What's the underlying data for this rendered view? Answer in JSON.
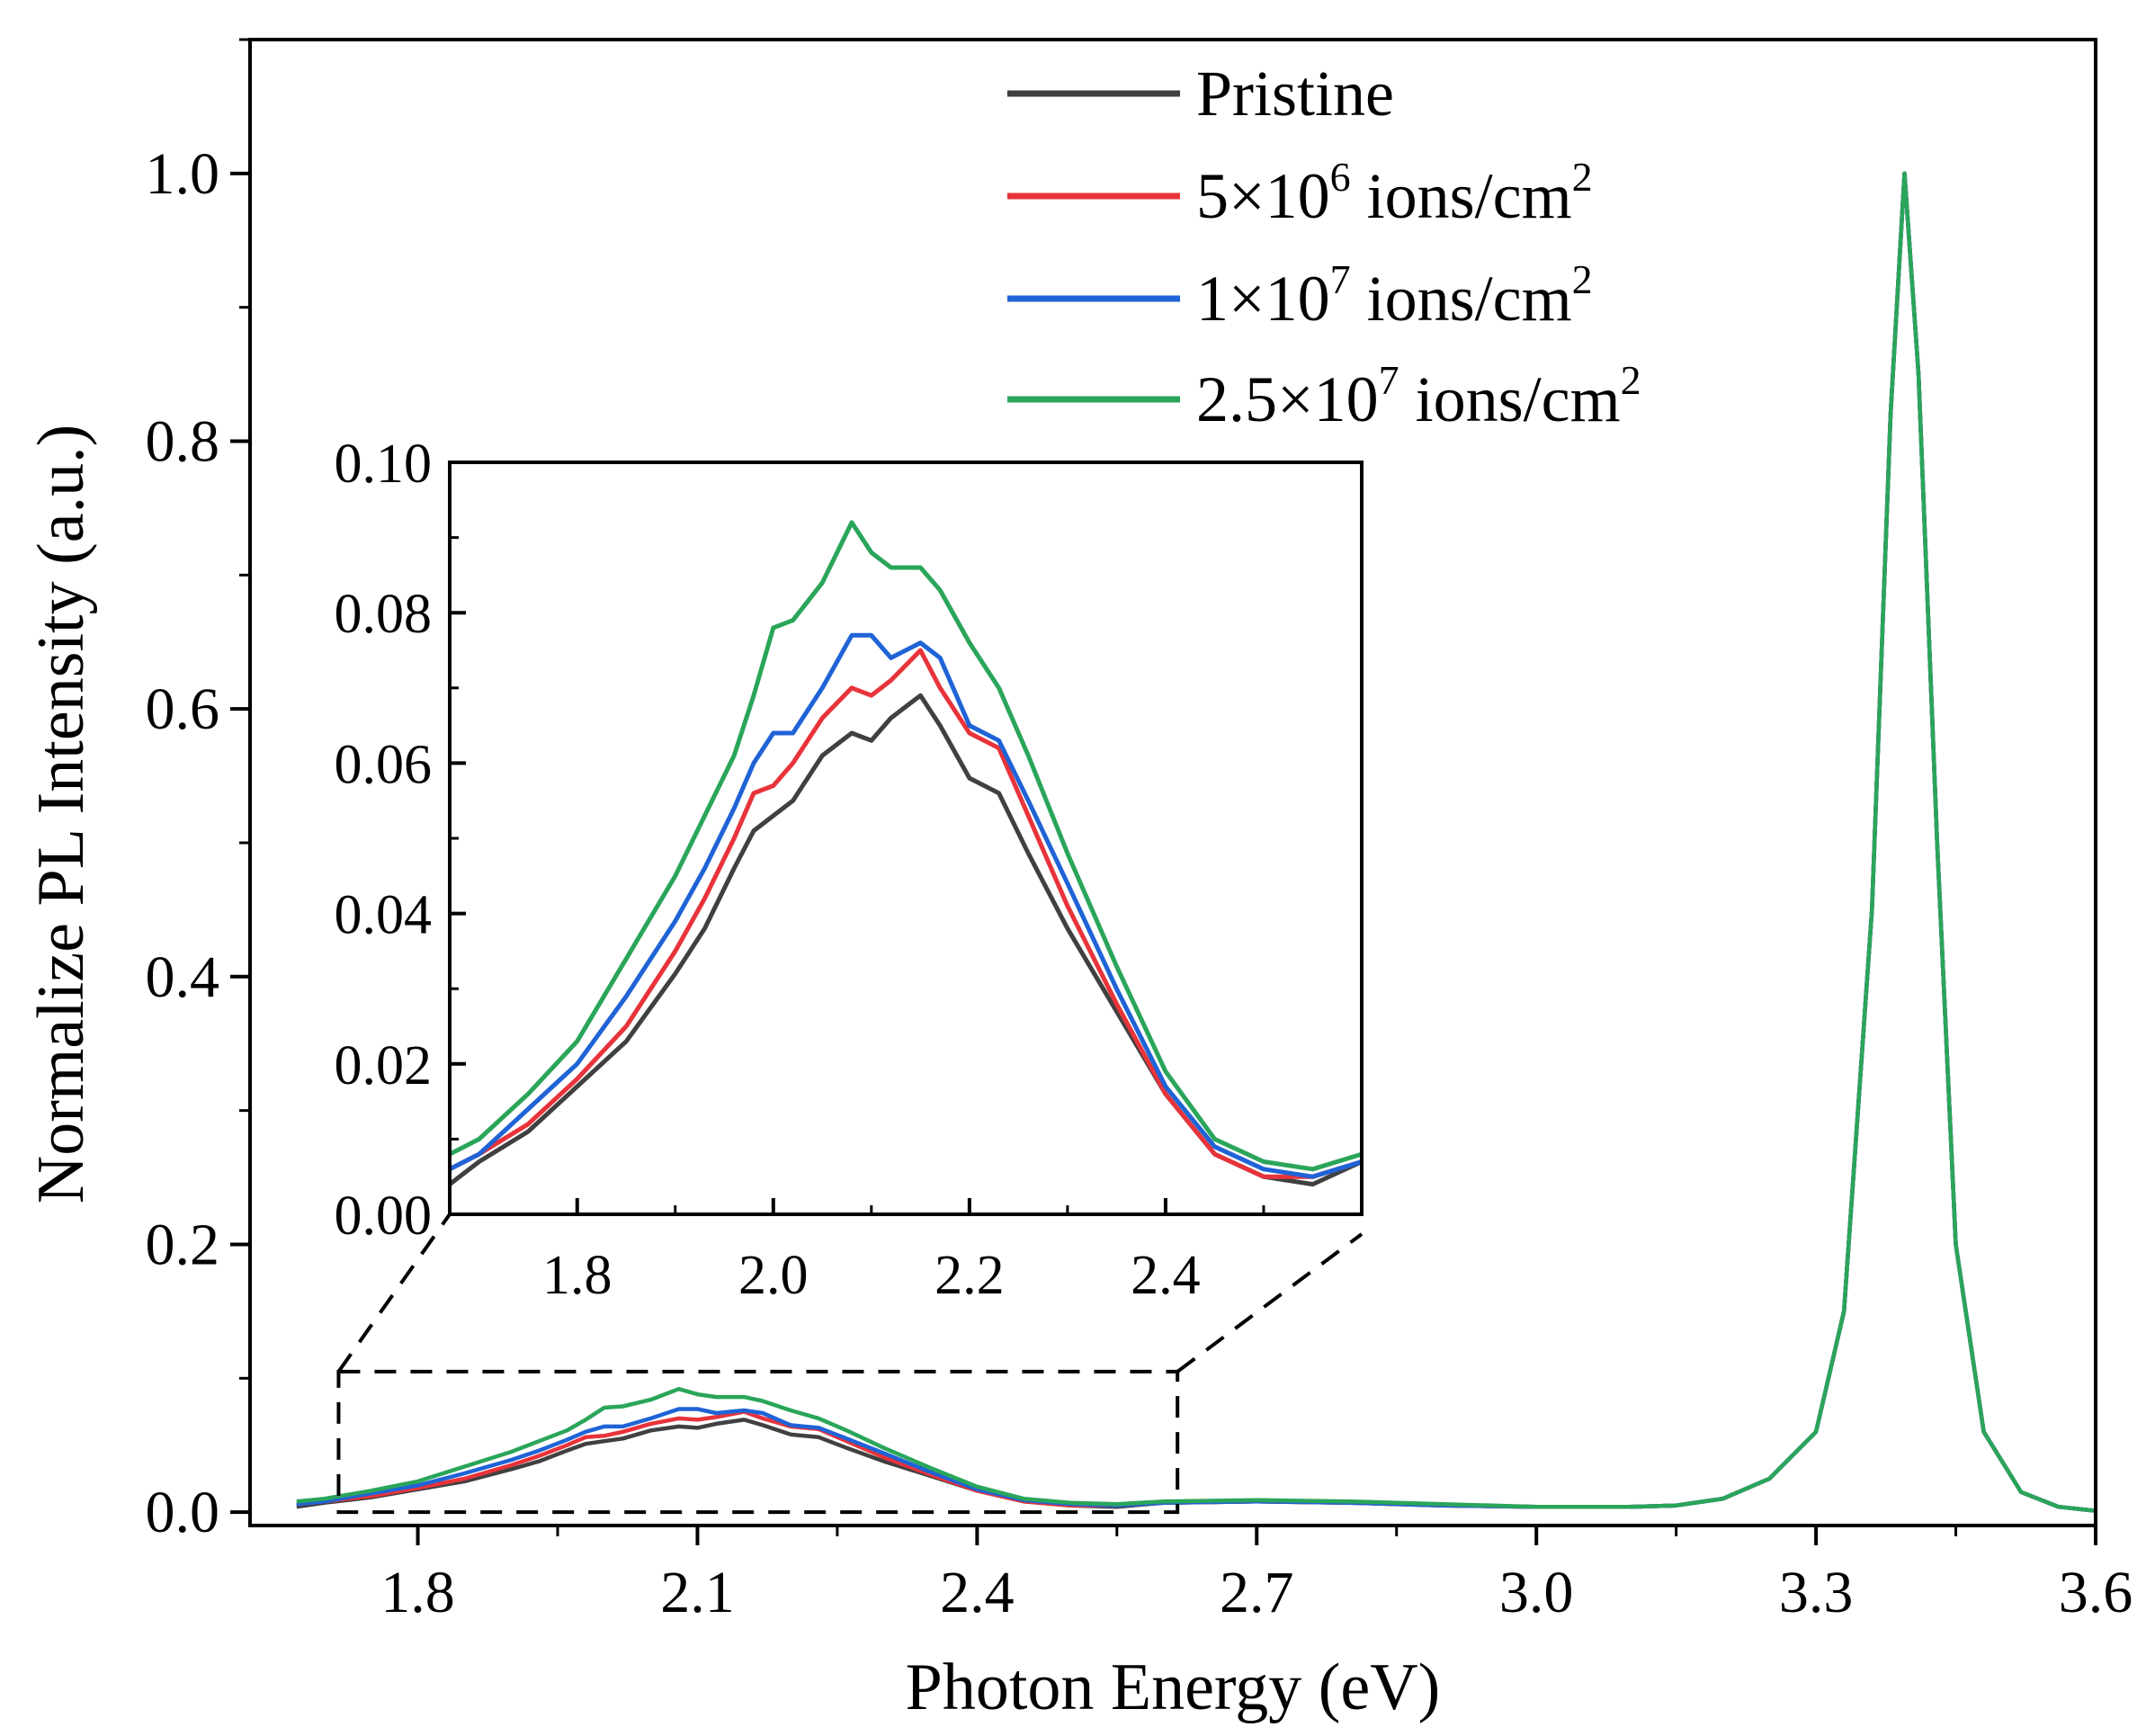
{
  "chart_data": {
    "type": "line",
    "main": {
      "xlabel": "Photon Energy (eV)",
      "ylabel": "Normalize PL Intensity (a.u.)",
      "xlim": [
        1.62,
        3.6
      ],
      "ylim": [
        -0.01,
        1.1
      ],
      "xticks": [
        {
          "v": 1.8,
          "label": "1.8"
        },
        {
          "v": 2.1,
          "label": "2.1"
        },
        {
          "v": 2.4,
          "label": "2.4"
        },
        {
          "v": 2.7,
          "label": "2.7"
        },
        {
          "v": 3.0,
          "label": "3.0"
        },
        {
          "v": 3.3,
          "label": "3.3"
        },
        {
          "v": 3.6,
          "label": "3.6"
        }
      ],
      "yticks": [
        {
          "v": 0.0,
          "label": "0.0"
        },
        {
          "v": 0.2,
          "label": "0.2"
        },
        {
          "v": 0.4,
          "label": "0.4"
        },
        {
          "v": 0.6,
          "label": "0.6"
        },
        {
          "v": 0.8,
          "label": "0.8"
        },
        {
          "v": 1.0,
          "label": "1.0"
        }
      ],
      "zoom_region": {
        "x": [
          1.715,
          2.615
        ],
        "y": [
          0.0,
          0.105
        ]
      }
    },
    "inset": {
      "xlim": [
        1.67,
        2.6
      ],
      "ylim": [
        0.0,
        0.1
      ],
      "xticks": [
        {
          "v": 1.8,
          "label": "1.8"
        },
        {
          "v": 2.0,
          "label": "2.0"
        },
        {
          "v": 2.2,
          "label": "2.2"
        },
        {
          "v": 2.4,
          "label": "2.4"
        }
      ],
      "yticks": [
        {
          "v": 0.0,
          "label": "0.00"
        },
        {
          "v": 0.02,
          "label": "0.02"
        },
        {
          "v": 0.04,
          "label": "0.04"
        },
        {
          "v": 0.06,
          "label": "0.06"
        },
        {
          "v": 0.08,
          "label": "0.08"
        },
        {
          "v": 0.1,
          "label": "0.10"
        }
      ]
    },
    "series": [
      {
        "name": "Pristine",
        "legend": {
          "prefix": "Pristine",
          "base": "",
          "exp": "",
          "unit": "",
          "unit_exp": ""
        },
        "color": "#404040",
        "points": [
          [
            1.67,
            0.004
          ],
          [
            1.7,
            0.007
          ],
          [
            1.75,
            0.011
          ],
          [
            1.8,
            0.017
          ],
          [
            1.85,
            0.023
          ],
          [
            1.9,
            0.032
          ],
          [
            1.93,
            0.038
          ],
          [
            1.96,
            0.046
          ],
          [
            1.98,
            0.051
          ],
          [
            2.0,
            0.053
          ],
          [
            2.02,
            0.055
          ],
          [
            2.05,
            0.061
          ],
          [
            2.08,
            0.064
          ],
          [
            2.1,
            0.063
          ],
          [
            2.12,
            0.066
          ],
          [
            2.15,
            0.069
          ],
          [
            2.17,
            0.065
          ],
          [
            2.2,
            0.058
          ],
          [
            2.23,
            0.056
          ],
          [
            2.26,
            0.048
          ],
          [
            2.3,
            0.038
          ],
          [
            2.35,
            0.027
          ],
          [
            2.4,
            0.016
          ],
          [
            2.45,
            0.008
          ],
          [
            2.5,
            0.005
          ],
          [
            2.55,
            0.004
          ],
          [
            2.6,
            0.007
          ],
          [
            2.7,
            0.008
          ],
          [
            2.8,
            0.007
          ],
          [
            2.9,
            0.005
          ],
          [
            3.0,
            0.004
          ],
          [
            3.1,
            0.004
          ],
          [
            3.15,
            0.005
          ],
          [
            3.2,
            0.01
          ],
          [
            3.25,
            0.025
          ],
          [
            3.3,
            0.06
          ],
          [
            3.33,
            0.15
          ],
          [
            3.36,
            0.45
          ],
          [
            3.38,
            0.82
          ],
          [
            3.395,
            1.0
          ],
          [
            3.41,
            0.85
          ],
          [
            3.43,
            0.5
          ],
          [
            3.45,
            0.2
          ],
          [
            3.48,
            0.06
          ],
          [
            3.52,
            0.015
          ],
          [
            3.56,
            0.004
          ],
          [
            3.6,
            0.001
          ]
        ]
      },
      {
        "name": "5×10^6 ions/cm^2",
        "legend": {
          "prefix": "",
          "base": "5×10",
          "exp": "6",
          "unit": " ions/cm",
          "unit_exp": "2"
        },
        "color": "#e8333a",
        "points": [
          [
            1.67,
            0.006
          ],
          [
            1.7,
            0.008
          ],
          [
            1.75,
            0.012
          ],
          [
            1.8,
            0.018
          ],
          [
            1.85,
            0.025
          ],
          [
            1.9,
            0.035
          ],
          [
            1.93,
            0.042
          ],
          [
            1.96,
            0.05
          ],
          [
            1.98,
            0.056
          ],
          [
            2.0,
            0.057
          ],
          [
            2.02,
            0.06
          ],
          [
            2.05,
            0.066
          ],
          [
            2.08,
            0.07
          ],
          [
            2.1,
            0.069
          ],
          [
            2.12,
            0.071
          ],
          [
            2.15,
            0.075
          ],
          [
            2.17,
            0.07
          ],
          [
            2.2,
            0.064
          ],
          [
            2.23,
            0.062
          ],
          [
            2.26,
            0.053
          ],
          [
            2.3,
            0.041
          ],
          [
            2.35,
            0.028
          ],
          [
            2.4,
            0.016
          ],
          [
            2.45,
            0.008
          ],
          [
            2.5,
            0.005
          ],
          [
            2.55,
            0.005
          ],
          [
            2.6,
            0.007
          ],
          [
            2.7,
            0.008
          ],
          [
            2.8,
            0.007
          ],
          [
            2.9,
            0.005
          ],
          [
            3.0,
            0.004
          ],
          [
            3.1,
            0.004
          ],
          [
            3.15,
            0.005
          ],
          [
            3.2,
            0.01
          ],
          [
            3.25,
            0.025
          ],
          [
            3.3,
            0.06
          ],
          [
            3.33,
            0.15
          ],
          [
            3.36,
            0.45
          ],
          [
            3.38,
            0.82
          ],
          [
            3.395,
            1.0
          ],
          [
            3.41,
            0.85
          ],
          [
            3.43,
            0.5
          ],
          [
            3.45,
            0.2
          ],
          [
            3.48,
            0.06
          ],
          [
            3.52,
            0.015
          ],
          [
            3.56,
            0.004
          ],
          [
            3.6,
            0.001
          ]
        ]
      },
      {
        "name": "1×10^7 ions/cm^2",
        "legend": {
          "prefix": "",
          "base": "1×10",
          "exp": "7",
          "unit": " ions/cm",
          "unit_exp": "2"
        },
        "color": "#1f63d6",
        "points": [
          [
            1.67,
            0.006
          ],
          [
            1.7,
            0.008
          ],
          [
            1.75,
            0.014
          ],
          [
            1.8,
            0.02
          ],
          [
            1.85,
            0.029
          ],
          [
            1.9,
            0.039
          ],
          [
            1.93,
            0.046
          ],
          [
            1.96,
            0.054
          ],
          [
            1.98,
            0.06
          ],
          [
            2.0,
            0.064
          ],
          [
            2.02,
            0.064
          ],
          [
            2.05,
            0.07
          ],
          [
            2.08,
            0.077
          ],
          [
            2.1,
            0.077
          ],
          [
            2.12,
            0.074
          ],
          [
            2.15,
            0.076
          ],
          [
            2.17,
            0.074
          ],
          [
            2.2,
            0.065
          ],
          [
            2.23,
            0.063
          ],
          [
            2.26,
            0.055
          ],
          [
            2.3,
            0.044
          ],
          [
            2.35,
            0.03
          ],
          [
            2.4,
            0.017
          ],
          [
            2.45,
            0.009
          ],
          [
            2.5,
            0.006
          ],
          [
            2.55,
            0.005
          ],
          [
            2.6,
            0.007
          ],
          [
            2.7,
            0.008
          ],
          [
            2.8,
            0.007
          ],
          [
            2.9,
            0.005
          ],
          [
            3.0,
            0.004
          ],
          [
            3.1,
            0.004
          ],
          [
            3.15,
            0.005
          ],
          [
            3.2,
            0.01
          ],
          [
            3.25,
            0.025
          ],
          [
            3.3,
            0.06
          ],
          [
            3.33,
            0.15
          ],
          [
            3.36,
            0.45
          ],
          [
            3.38,
            0.82
          ],
          [
            3.395,
            1.0
          ],
          [
            3.41,
            0.85
          ],
          [
            3.43,
            0.5
          ],
          [
            3.45,
            0.2
          ],
          [
            3.48,
            0.06
          ],
          [
            3.52,
            0.015
          ],
          [
            3.56,
            0.004
          ],
          [
            3.6,
            0.001
          ]
        ]
      },
      {
        "name": "2.5×10^7 ions/cm^2",
        "legend": {
          "prefix": "",
          "base": "2.5×10",
          "exp": "7",
          "unit": " ions/cm",
          "unit_exp": "2"
        },
        "color": "#2aa55a",
        "points": [
          [
            1.67,
            0.008
          ],
          [
            1.7,
            0.01
          ],
          [
            1.75,
            0.016
          ],
          [
            1.8,
            0.023
          ],
          [
            1.85,
            0.034
          ],
          [
            1.9,
            0.045
          ],
          [
            1.93,
            0.053
          ],
          [
            1.96,
            0.061
          ],
          [
            1.98,
            0.069
          ],
          [
            2.0,
            0.078
          ],
          [
            2.02,
            0.079
          ],
          [
            2.05,
            0.084
          ],
          [
            2.08,
            0.092
          ],
          [
            2.1,
            0.088
          ],
          [
            2.12,
            0.086
          ],
          [
            2.15,
            0.086
          ],
          [
            2.17,
            0.083
          ],
          [
            2.2,
            0.076
          ],
          [
            2.23,
            0.07
          ],
          [
            2.26,
            0.061
          ],
          [
            2.3,
            0.048
          ],
          [
            2.35,
            0.033
          ],
          [
            2.4,
            0.019
          ],
          [
            2.45,
            0.01
          ],
          [
            2.5,
            0.007
          ],
          [
            2.55,
            0.006
          ],
          [
            2.6,
            0.008
          ],
          [
            2.7,
            0.009
          ],
          [
            2.8,
            0.008
          ],
          [
            2.9,
            0.006
          ],
          [
            3.0,
            0.004
          ],
          [
            3.1,
            0.004
          ],
          [
            3.15,
            0.005
          ],
          [
            3.2,
            0.01
          ],
          [
            3.25,
            0.025
          ],
          [
            3.3,
            0.06
          ],
          [
            3.33,
            0.15
          ],
          [
            3.36,
            0.45
          ],
          [
            3.38,
            0.82
          ],
          [
            3.395,
            1.0
          ],
          [
            3.41,
            0.85
          ],
          [
            3.43,
            0.5
          ],
          [
            3.45,
            0.2
          ],
          [
            3.48,
            0.06
          ],
          [
            3.52,
            0.015
          ],
          [
            3.56,
            0.004
          ],
          [
            3.6,
            0.001
          ]
        ]
      }
    ]
  }
}
